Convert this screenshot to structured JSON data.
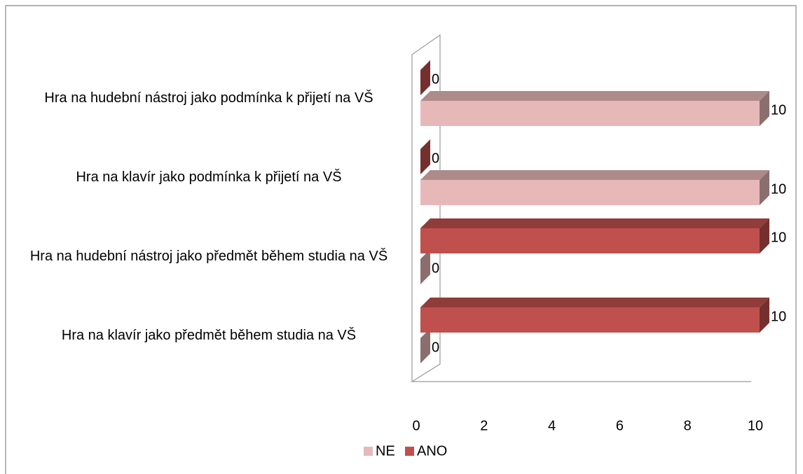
{
  "chart_data": {
    "type": "bar3d_horizontal",
    "categories": [
      "Hra na klavír jako předmět během studia na VŠ",
      "Hra na hudební nástroj jako předmět během studia na VŠ",
      "Hra na klavír jako podmínka k přijetí na VŠ",
      "Hra na hudební nástroj jako podmínka k přijetí na VŠ"
    ],
    "series": [
      {
        "name": "NE",
        "color": "#e6b9b8",
        "values": [
          0,
          0,
          10,
          10
        ]
      },
      {
        "name": "ANO",
        "color": "#c0504d",
        "values": [
          10,
          10,
          0,
          0
        ]
      }
    ],
    "xlim": [
      0,
      10
    ],
    "xticks": [
      0,
      2,
      4,
      6,
      8,
      10
    ],
    "legend": "bottom"
  }
}
